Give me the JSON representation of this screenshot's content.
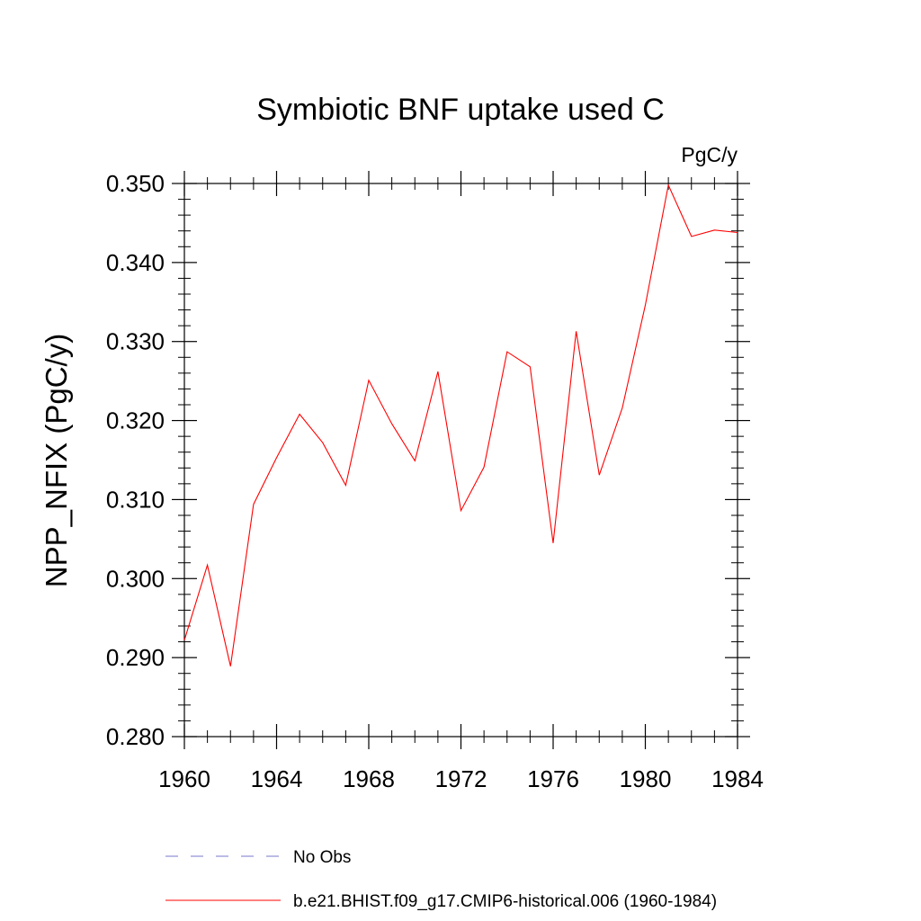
{
  "chart_data": {
    "type": "line",
    "title": "Symbiotic BNF uptake used C",
    "units": "PgC/y",
    "xlabel": "",
    "ylabel": "NPP_NFIX  (PgC/y)",
    "xlim": [
      1960,
      1984
    ],
    "ylim": [
      0.28,
      0.35
    ],
    "xticks": [
      1960,
      1964,
      1968,
      1972,
      1976,
      1980,
      1984
    ],
    "xtick_labels": [
      "1960",
      "1964",
      "1968",
      "1972",
      "1976",
      "1980",
      "1984"
    ],
    "yticks": [
      0.28,
      0.29,
      0.3,
      0.31,
      0.32,
      0.33,
      0.34,
      0.35
    ],
    "ytick_labels": [
      "0.280",
      "0.290",
      "0.300",
      "0.310",
      "0.320",
      "0.330",
      "0.340",
      "0.350"
    ],
    "grid": false,
    "legend_position": "bottom",
    "series": [
      {
        "name": "b.e21.BHIST.f09_g17.CMIP6-historical.006 (1960-1984)",
        "color": "#ff0000",
        "dash": "solid",
        "x": [
          1960,
          1961,
          1962,
          1963,
          1964,
          1965,
          1966,
          1967,
          1968,
          1969,
          1970,
          1971,
          1972,
          1973,
          1974,
          1975,
          1976,
          1977,
          1978,
          1979,
          1980,
          1981,
          1982,
          1983,
          1984
        ],
        "y": [
          0.2922,
          0.3017,
          0.2889,
          0.3094,
          0.3153,
          0.3208,
          0.3172,
          0.3118,
          0.3251,
          0.3196,
          0.3149,
          0.3262,
          0.3086,
          0.3141,
          0.3287,
          0.3268,
          0.3045,
          0.3313,
          0.3131,
          0.3216,
          0.3346,
          0.3498,
          0.3433,
          0.3441,
          0.3438
        ]
      }
    ],
    "legend": [
      {
        "label": "No Obs",
        "color": "#7777cc",
        "dash": "dashed"
      },
      {
        "label": "b.e21.BHIST.f09_g17.CMIP6-historical.006 (1960-1984)",
        "color": "#ff0000",
        "dash": "solid"
      }
    ]
  }
}
